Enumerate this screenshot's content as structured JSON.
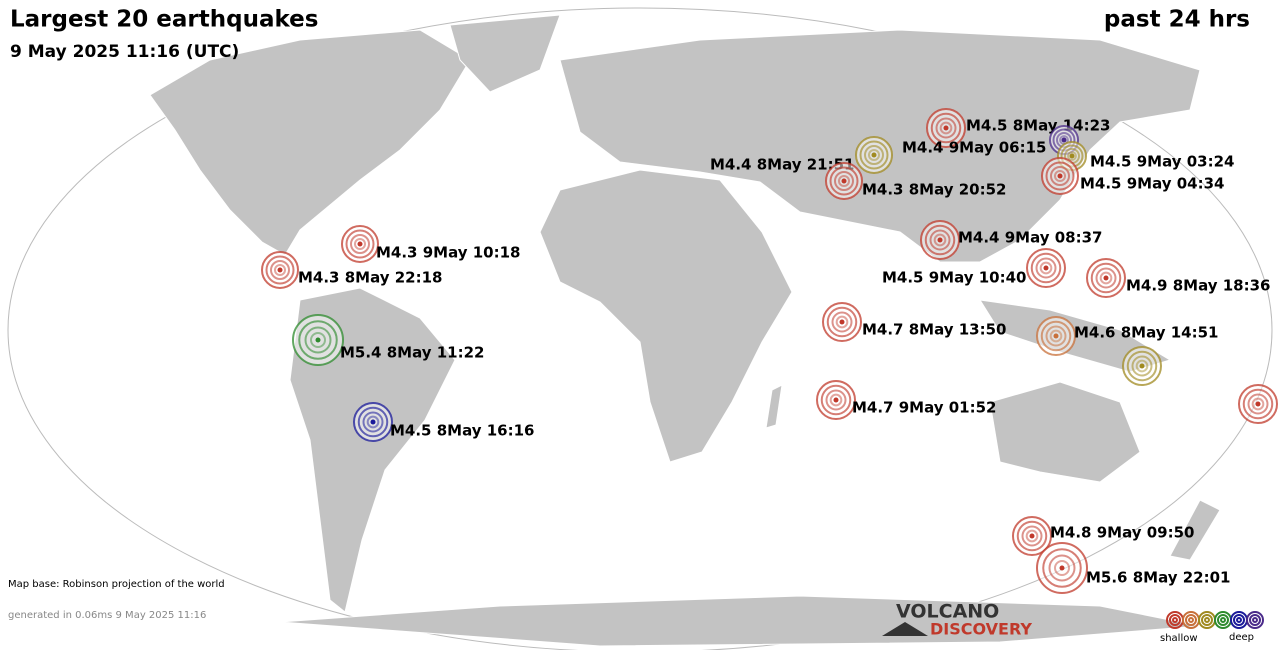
{
  "header": {
    "title": "Largest 20 earthquakes",
    "subtitle": "9 May 2025 11:16 (UTC)",
    "period": "past 24 hrs"
  },
  "quakes": [
    {
      "label": "M4.5  8May 14:23",
      "color": "#c0392b"
    },
    {
      "label": "M4.4  8May 21:51",
      "color": "#a08a20"
    },
    {
      "label": "M4.4  9May 06:15",
      "color": "#4a2a8a"
    },
    {
      "label": "M4.5  9May 03:24",
      "color": "#a08a20"
    },
    {
      "label": "M4.5  9May 04:34",
      "color": "#c0392b"
    },
    {
      "label": "M4.3  8May 20:52",
      "color": "#c0392b"
    },
    {
      "label": "M4.4  9May 08:37",
      "color": "#c0392b"
    },
    {
      "label": "M4.3  9May 10:18",
      "color": "#c0392b"
    },
    {
      "label": "M4.3  8May 22:18",
      "color": "#c0392b"
    },
    {
      "label": "M4.5  9May 10:40",
      "color": "#c0392b"
    },
    {
      "label": "M4.9  8May 18:36",
      "color": "#c0392b"
    },
    {
      "label": "M5.4  8May 11:22",
      "color": "#2e8b2e"
    },
    {
      "label": "M4.7  8May 13:50",
      "color": "#c0392b"
    },
    {
      "label": "M4.6  8May 14:51",
      "color": "#c8703a"
    },
    {
      "color": "#a08a20"
    },
    {
      "color": "#c0392b"
    },
    {
      "label": "M4.7  9May 01:52",
      "color": "#c0392b"
    },
    {
      "label": "M4.5  8May 16:16",
      "color": "#1a1a9a"
    },
    {
      "label": "M4.8  9May 09:50",
      "color": "#c0392b"
    },
    {
      "label": "M5.6  8May 22:01",
      "color": "#c0392b"
    }
  ],
  "footer": {
    "map_base": "Map base: Robinson projection of the world",
    "generated": "generated in 0.06ms  9 May 2025 11:16"
  },
  "logo": {
    "line1": "VOLCANO",
    "line2": "DISCOVERY"
  },
  "legend": {
    "colors": [
      "#c0392b",
      "#c8703a",
      "#a08a20",
      "#2e8b2e",
      "#1a1a9a",
      "#4a2a8a"
    ],
    "shallow": "shallow",
    "deep": "deep"
  }
}
